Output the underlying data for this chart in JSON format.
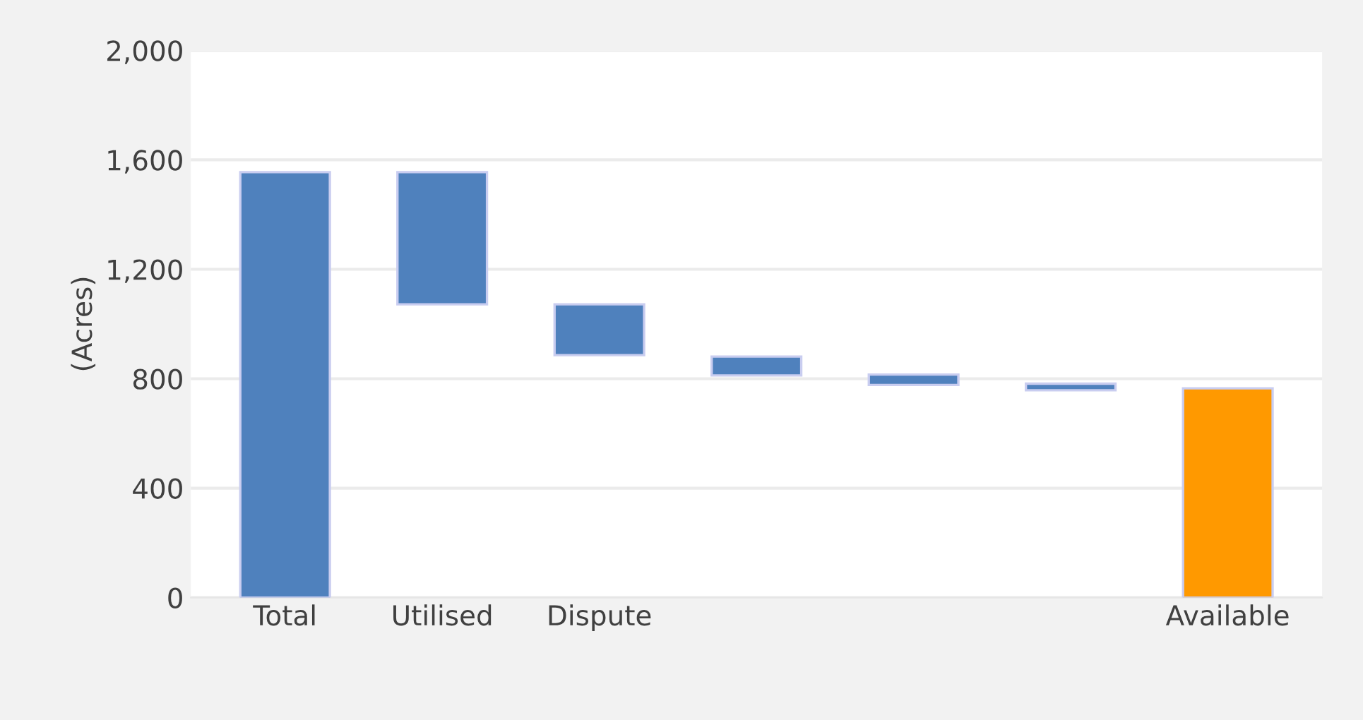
{
  "chart_data": {
    "type": "bar",
    "ylabel": "(Acres)",
    "categories": [
      "Total",
      "Utilised",
      "Dispute",
      null,
      null,
      null,
      "Available"
    ],
    "values": [
      1555,
      483,
      186,
      69,
      38,
      24,
      765
    ],
    "base": [
      0,
      1072,
      886,
      812,
      777,
      758,
      0
    ],
    "colors": [
      "#4f81bd",
      "#4f81bd",
      "#4f81bd",
      "#4f81bd",
      "#4f81bd",
      "#4f81bd",
      "#ff9900"
    ],
    "ylim": [
      0,
      2000
    ],
    "yticks": [
      {
        "value": 0,
        "label": "0"
      },
      {
        "value": 400,
        "label": "400"
      },
      {
        "value": 800,
        "label": "800"
      },
      {
        "value": 1200,
        "label": "1,200"
      },
      {
        "value": 1600,
        "label": "1,600"
      },
      {
        "value": 2000,
        "label": "2,000"
      }
    ],
    "grid": "y"
  }
}
